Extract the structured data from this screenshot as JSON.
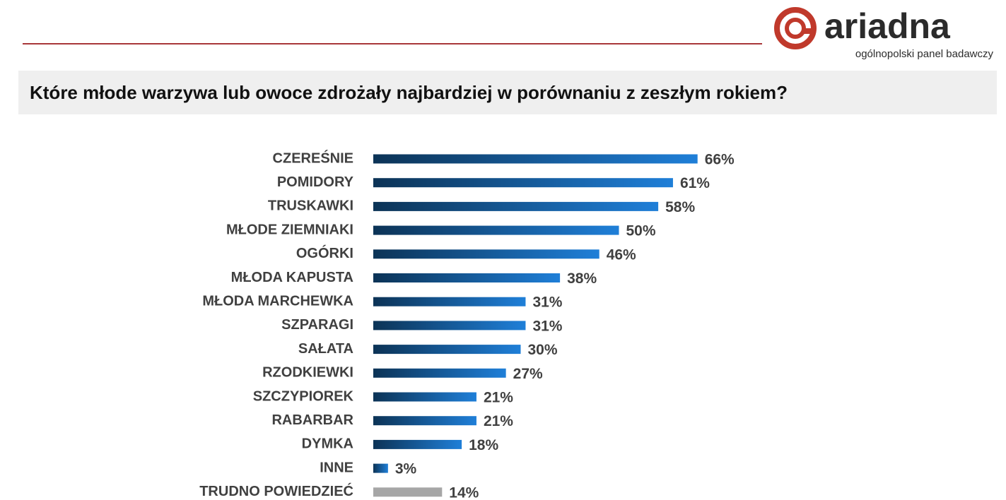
{
  "header": {
    "logo": "ariadna",
    "tagline": "ogólnopolski panel badawczy"
  },
  "chart_data": {
    "type": "bar",
    "title": "Które młode warzywa lub owoce zdrożały najbardziej w porównaniu z zeszłym rokiem?",
    "categories": [
      "CZEREŚNIE",
      "POMIDORY",
      "TRUSKAWKI",
      "MŁODE ZIEMNIAKI",
      "OGÓRKI",
      "MŁODA KAPUSTA",
      "MŁODA MARCHEWKA",
      "SZPARAGI",
      "SAŁATA",
      "RZODKIEWKI",
      "SZCZYPIOREK",
      "RABARBAR",
      "DYMKA",
      "INNE",
      "TRUDNO POWIEDZIEĆ"
    ],
    "values": [
      66,
      61,
      58,
      50,
      46,
      38,
      31,
      31,
      30,
      27,
      21,
      21,
      18,
      3,
      14
    ],
    "value_labels": [
      "66%",
      "61%",
      "58%",
      "50%",
      "46%",
      "38%",
      "31%",
      "31%",
      "30%",
      "27%",
      "21%",
      "21%",
      "18%",
      "3%",
      "14%"
    ],
    "colors": [
      "#1f7fd8",
      "#1f7fd8",
      "#1f7fd8",
      "#1f7fd8",
      "#1f7fd8",
      "#1f7fd8",
      "#1f7fd8",
      "#1f7fd8",
      "#1f7fd8",
      "#1f7fd8",
      "#1f7fd8",
      "#1f7fd8",
      "#1f7fd8",
      "#1f7fd8",
      "#a6a6a6"
    ]
  }
}
